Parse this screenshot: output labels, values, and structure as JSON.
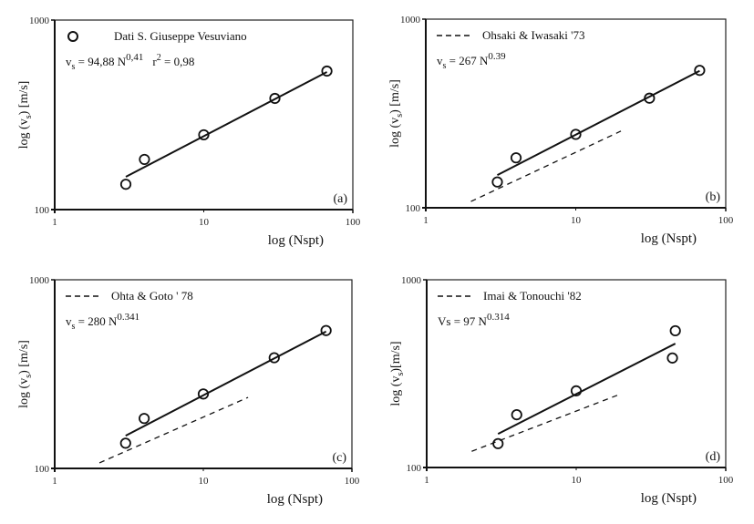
{
  "chart_data": [
    {
      "type": "scatter",
      "panel_label": "(a)",
      "xlabel": "log (Nspt)",
      "ylabel_parts": {
        "pre": "log (v",
        "sub": "s",
        "post": ") [m/s]"
      },
      "xscale": "log",
      "yscale": "log",
      "xlim": [
        1,
        100
      ],
      "ylim": [
        100,
        1000
      ],
      "x_ticks": [
        "1",
        "10",
        "100"
      ],
      "y_ticks": [
        "100",
        "1000"
      ],
      "legend": {
        "marker": "open-circle",
        "label": "Dati S. Giuseppe Vesuviano"
      },
      "formula": {
        "lhs": "v",
        "lhs_sub": "s",
        "mid": " = 94,88 N",
        "exp": "0,41",
        "extra": "r",
        "extra_sup": "2",
        "extra_tail": " = 0,98"
      },
      "points": [
        {
          "x": 3,
          "y": 136
        },
        {
          "x": 4,
          "y": 184
        },
        {
          "x": 10,
          "y": 248
        },
        {
          "x": 30,
          "y": 386
        },
        {
          "x": 67,
          "y": 538
        }
      ],
      "fit_line": {
        "x": [
          3,
          67
        ],
        "y": [
          149,
          532
        ]
      },
      "ref_line": null
    },
    {
      "type": "scatter",
      "panel_label": "(b)",
      "xlabel": "log (Nspt)",
      "ylabel_parts": {
        "pre": "log (v",
        "sub": "s",
        "post": ") [m/s]"
      },
      "xscale": "log",
      "yscale": "log",
      "xlim": [
        1,
        100
      ],
      "ylim": [
        100,
        1000
      ],
      "x_ticks": [
        "1",
        "10",
        "100"
      ],
      "y_ticks": [
        "100",
        "1000"
      ],
      "legend": {
        "marker": "dashed-line",
        "label": "Ohsaki  &  Iwasaki '73"
      },
      "formula": {
        "lhs": "v",
        "lhs_sub": "s",
        "mid": " = 267 N",
        "exp": "0.39"
      },
      "points": [
        {
          "x": 3,
          "y": 137
        },
        {
          "x": 4,
          "y": 184
        },
        {
          "x": 10,
          "y": 245
        },
        {
          "x": 31,
          "y": 381
        },
        {
          "x": 67,
          "y": 535
        }
      ],
      "fit_line": {
        "x": [
          3,
          67
        ],
        "y": [
          149,
          532
        ]
      },
      "ref_line": {
        "x": [
          2,
          20
        ],
        "y": [
          108,
          255
        ]
      }
    },
    {
      "type": "scatter",
      "panel_label": "(c)",
      "xlabel": "log (Nspt)",
      "ylabel_parts": {
        "pre": "log (v",
        "sub": "s",
        "post": ") [m/s]"
      },
      "xscale": "log",
      "yscale": "log",
      "xlim": [
        1,
        100
      ],
      "ylim": [
        100,
        1000
      ],
      "x_ticks": [
        "1",
        "10",
        "100"
      ],
      "y_ticks": [
        "100",
        "1000"
      ],
      "legend": {
        "marker": "dashed-line",
        "label": "Ohta & Goto ' 78"
      },
      "formula": {
        "lhs": "v",
        "lhs_sub": "s",
        "mid": " = 280 N",
        "exp": "0.341"
      },
      "points": [
        {
          "x": 3,
          "y": 136
        },
        {
          "x": 4,
          "y": 184
        },
        {
          "x": 10,
          "y": 248
        },
        {
          "x": 30,
          "y": 386
        },
        {
          "x": 67,
          "y": 538
        }
      ],
      "fit_line": {
        "x": [
          3,
          67
        ],
        "y": [
          149,
          532
        ]
      },
      "ref_line": {
        "x": [
          2,
          20
        ],
        "y": [
          107,
          238
        ]
      }
    },
    {
      "type": "scatter",
      "panel_label": "(d)",
      "xlabel": "log (Nspt)",
      "ylabel_parts": {
        "pre": "log (v",
        "sub": "s",
        "post": ")[m/s]"
      },
      "xscale": "log",
      "yscale": "log",
      "xlim": [
        1,
        100
      ],
      "ylim": [
        100,
        1000
      ],
      "x_ticks": [
        "1",
        "10",
        "100"
      ],
      "y_ticks": [
        "100",
        "1000"
      ],
      "legend": {
        "marker": "dashed-line",
        "label": "Imai & Tonouchi '82"
      },
      "formula": {
        "lhs": "Vs",
        "lhs_sub": "",
        "mid": " = 97 N",
        "exp": "0.314"
      },
      "points": [
        {
          "x": 3,
          "y": 134
        },
        {
          "x": 4,
          "y": 191
        },
        {
          "x": 10,
          "y": 256
        },
        {
          "x": 44,
          "y": 383
        },
        {
          "x": 46,
          "y": 535
        }
      ],
      "fit_line": {
        "x": [
          3,
          46
        ],
        "y": [
          151,
          457
        ]
      },
      "ref_line": {
        "x": [
          2,
          20
        ],
        "y": [
          122,
          247
        ]
      }
    }
  ]
}
